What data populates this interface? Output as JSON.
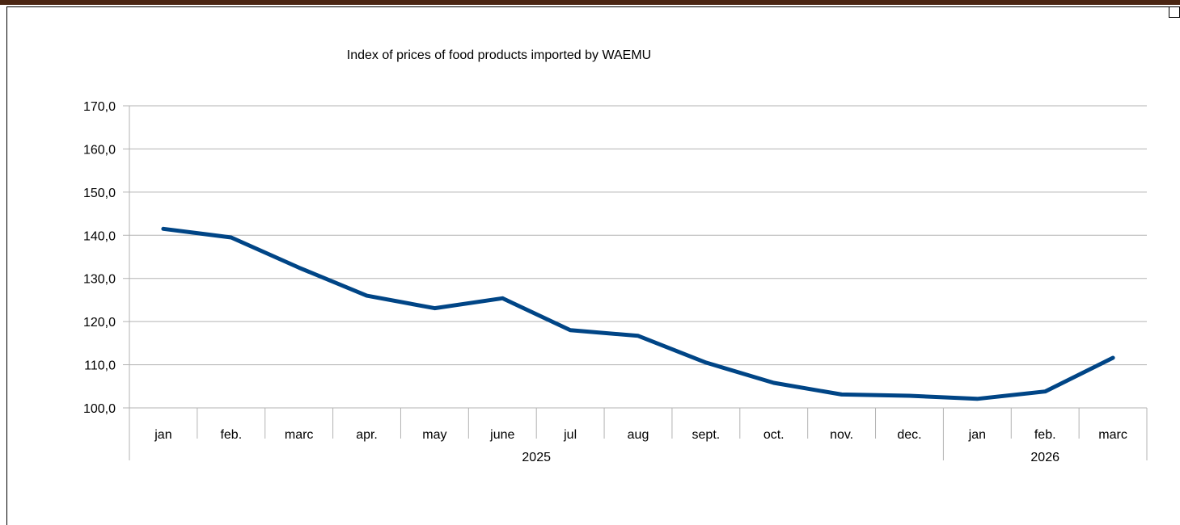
{
  "colors": {
    "top_border": "#4a2512",
    "line": "#004586",
    "grid": "#b3b3b3"
  },
  "chart_data": {
    "type": "line",
    "title": "Index of prices of food products imported by WAEMU",
    "xlabel": "",
    "ylabel": "",
    "ylim": [
      100,
      170
    ],
    "y_ticks": [
      "100,0",
      "110,0",
      "120,0",
      "130,0",
      "140,0",
      "150,0",
      "160,0",
      "170,0"
    ],
    "grid": true,
    "legend": "none",
    "categories": [
      "jan",
      "feb.",
      "marc",
      "apr.",
      "may",
      "june",
      "jul",
      "aug",
      "sept.",
      "oct.",
      "nov.",
      "dec.",
      "jan",
      "feb.",
      "marc"
    ],
    "groups": [
      {
        "label": "2025",
        "count": 12
      },
      {
        "label": "2026",
        "count": 3
      }
    ],
    "series": [
      {
        "values": [
          141.5,
          139.5,
          132.5,
          126.0,
          123.1,
          125.4,
          118.0,
          116.7,
          110.5,
          105.8,
          103.1,
          102.8,
          102.1,
          103.8,
          111.6
        ]
      }
    ]
  }
}
